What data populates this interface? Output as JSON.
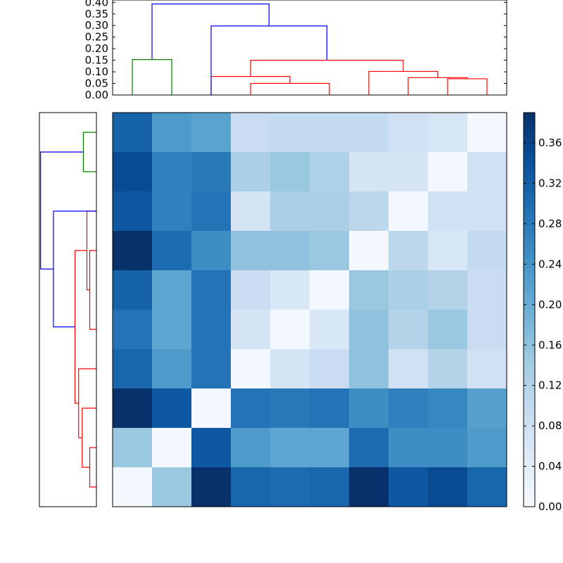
{
  "chart_data": [
    {
      "type": "heatmap",
      "panel": "main",
      "rows": 10,
      "cols": 10,
      "values": [
        [
          0.315,
          0.23,
          0.215,
          0.09,
          0.1,
          0.1,
          0.1,
          0.08,
          0.065,
          0.01
        ],
        [
          0.35,
          0.27,
          0.28,
          0.13,
          0.15,
          0.125,
          0.07,
          0.07,
          0.01,
          0.08
        ],
        [
          0.33,
          0.27,
          0.29,
          0.07,
          0.13,
          0.13,
          0.11,
          0.01,
          0.08,
          0.08
        ],
        [
          0.39,
          0.3,
          0.25,
          0.16,
          0.16,
          0.15,
          0.01,
          0.11,
          0.06,
          0.1
        ],
        [
          0.315,
          0.21,
          0.29,
          0.09,
          0.06,
          0.01,
          0.15,
          0.13,
          0.12,
          0.09
        ],
        [
          0.29,
          0.21,
          0.29,
          0.07,
          0.01,
          0.06,
          0.16,
          0.12,
          0.15,
          0.09
        ],
        [
          0.31,
          0.23,
          0.29,
          0.01,
          0.07,
          0.09,
          0.16,
          0.08,
          0.12,
          0.08
        ],
        [
          0.39,
          0.33,
          0.01,
          0.29,
          0.28,
          0.29,
          0.25,
          0.27,
          0.26,
          0.22
        ],
        [
          0.15,
          0.01,
          0.33,
          0.23,
          0.21,
          0.21,
          0.3,
          0.25,
          0.25,
          0.23
        ],
        [
          0.01,
          0.15,
          0.39,
          0.31,
          0.3,
          0.31,
          0.39,
          0.33,
          0.35,
          0.31
        ]
      ],
      "colormap": "Blues",
      "vmin": 0.0,
      "vmax": 0.39
    },
    {
      "type": "colorbar",
      "panel": "colorbar",
      "ticks": [
        "0.00",
        "0.04",
        "0.08",
        "0.12",
        "0.16",
        "0.20",
        "0.24",
        "0.28",
        "0.32",
        "0.36"
      ],
      "range": [
        0.0,
        0.39
      ]
    },
    {
      "type": "dendrogram",
      "panel": "top",
      "orientation": "top",
      "ylim": [
        0.0,
        0.41
      ],
      "yticks": [
        "0.00",
        "0.05",
        "0.10",
        "0.15",
        "0.20",
        "0.25",
        "0.30",
        "0.35",
        "0.40"
      ],
      "links": [
        {
          "left": 0.5,
          "right": 1.5,
          "height": 0.153,
          "color": "#008000"
        },
        {
          "left": 3.5,
          "right": 5.5,
          "height": 0.05,
          "color": "#ff0000"
        },
        {
          "left": 2.5,
          "right": 4.5,
          "height": 0.08,
          "color": "#ff0000"
        },
        {
          "left": 8.5,
          "right": 9.5,
          "height": 0.07,
          "color": "#ff0000"
        },
        {
          "left": 7.5,
          "right": 9.0,
          "height": 0.075,
          "color": "#ff0000"
        },
        {
          "left": 6.5,
          "right": 8.25,
          "height": 0.102,
          "color": "#ff0000"
        },
        {
          "left": 3.5,
          "right": 7.375,
          "height": 0.15,
          "color": "#ff0000"
        },
        {
          "left": 2.5,
          "right": 5.4375,
          "height": 0.298,
          "color": "#0000ff"
        },
        {
          "left": 1.0,
          "right": 3.96875,
          "height": 0.393,
          "color": "#0000ff"
        }
      ]
    },
    {
      "type": "dendrogram",
      "panel": "left",
      "orientation": "left",
      "links": [
        {
          "a": 0.5,
          "b": 1.5,
          "height": 0.055,
          "color": "#008000"
        },
        {
          "a": 8.5,
          "b": 9.5,
          "height": 0.028,
          "color": "#ff0000"
        },
        {
          "a": 7.5,
          "b": 9.0,
          "height": 0.06,
          "color": "#ff0000"
        },
        {
          "a": 6.5,
          "b": 8.25,
          "height": 0.075,
          "color": "#ff0000"
        },
        {
          "a": 3.5,
          "b": 5.5,
          "height": 0.028,
          "color": "#ff0000"
        },
        {
          "a": 2.5,
          "b": 4.5,
          "height": 0.04,
          "color": "#ff0000"
        },
        {
          "a": 3.5,
          "b": 7.375,
          "height": 0.09,
          "color": "#ff0000"
        },
        {
          "a": 2.5,
          "b": 5.4375,
          "height": 0.181,
          "color": "#0000ff"
        },
        {
          "a": 1.0,
          "b": 3.96875,
          "height": 0.235,
          "color": "#0000ff"
        }
      ],
      "xlim": [
        0.0,
        0.24
      ]
    }
  ]
}
